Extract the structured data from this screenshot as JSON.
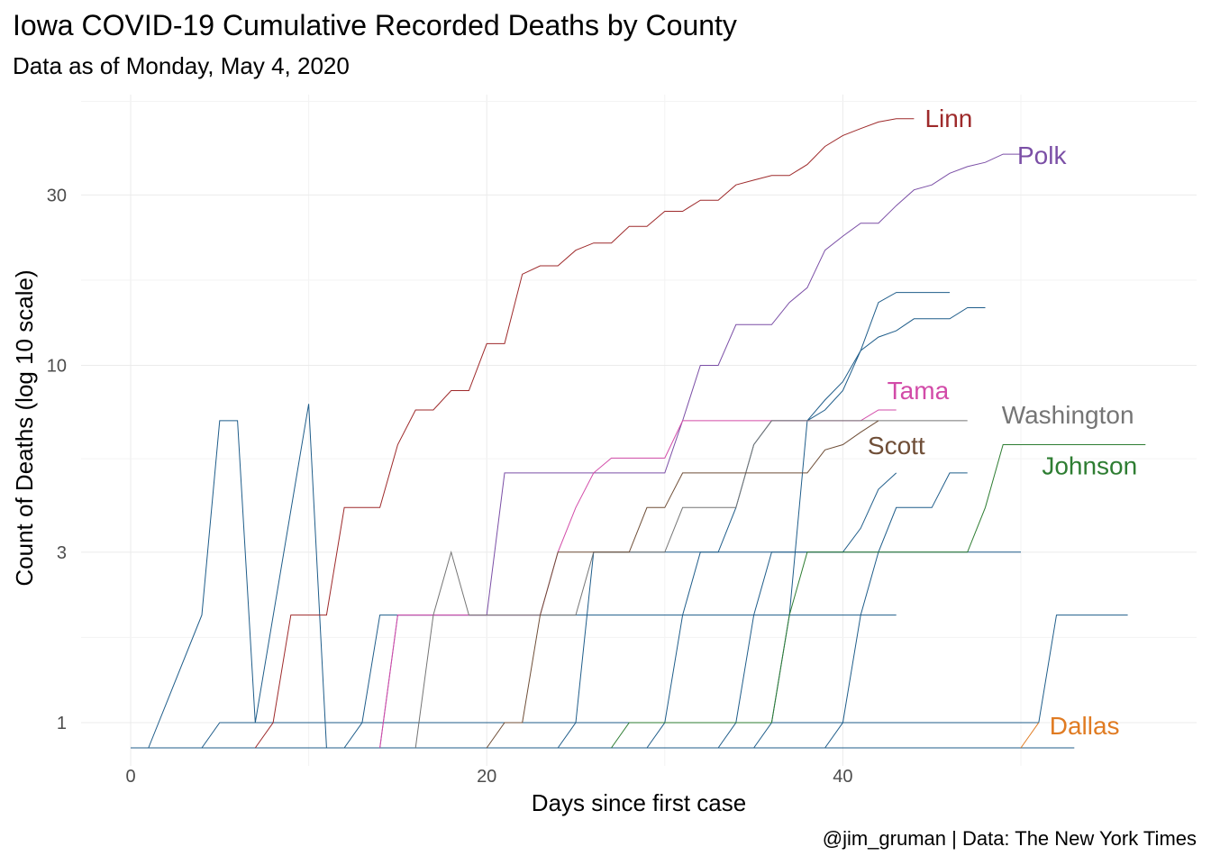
{
  "chart_data": {
    "type": "line",
    "title": "Iowa COVID-19 Cumulative Recorded Deaths by County",
    "subtitle": "Data as of Monday, May  4, 2020",
    "caption": "@jim_gruman | Data: The New York Times",
    "xlabel": "Days since first case",
    "ylabel": "Count of Deaths (log 10 scale)",
    "x_scale": "linear",
    "y_scale": "log10",
    "xlim": [
      -3,
      57
    ],
    "ylim": [
      0.82,
      62
    ],
    "x_ticks": [
      0,
      20,
      40
    ],
    "y_ticks": [
      1,
      3,
      10,
      30
    ],
    "y_tick_labels": [
      "1",
      "3",
      "10",
      "30"
    ],
    "grid": true,
    "legend": "none",
    "series": [
      {
        "name": "Linn",
        "color": "#9e2a2b",
        "labeled": true,
        "points": [
          [
            7,
            0.85
          ],
          [
            8,
            1
          ],
          [
            9,
            2
          ],
          [
            11,
            2
          ],
          [
            12,
            4
          ],
          [
            14,
            4
          ],
          [
            15,
            6
          ],
          [
            16,
            7.5
          ],
          [
            17,
            7.5
          ],
          [
            18,
            8.5
          ],
          [
            19,
            8.5
          ],
          [
            20,
            11.5
          ],
          [
            21,
            11.5
          ],
          [
            22,
            18
          ],
          [
            23,
            19
          ],
          [
            24,
            19
          ],
          [
            25,
            21
          ],
          [
            26,
            22
          ],
          [
            27,
            22
          ],
          [
            28,
            24.5
          ],
          [
            29,
            24.5
          ],
          [
            30,
            27
          ],
          [
            31,
            27
          ],
          [
            32,
            29
          ],
          [
            33,
            29
          ],
          [
            34,
            32
          ],
          [
            35,
            33
          ],
          [
            36,
            34
          ],
          [
            37,
            34
          ],
          [
            38,
            36.5
          ],
          [
            39,
            41
          ],
          [
            40,
            44
          ],
          [
            41,
            46
          ],
          [
            42,
            48
          ],
          [
            43,
            49
          ],
          [
            44,
            49
          ]
        ]
      },
      {
        "name": "Polk",
        "color": "#7b4fa6",
        "labeled": true,
        "points": [
          [
            14,
            0.85
          ],
          [
            15,
            2
          ],
          [
            20,
            2
          ],
          [
            21,
            5
          ],
          [
            30,
            5
          ],
          [
            31,
            7
          ],
          [
            32,
            10
          ],
          [
            33,
            10
          ],
          [
            34,
            13
          ],
          [
            36,
            13
          ],
          [
            37,
            15
          ],
          [
            38,
            16.5
          ],
          [
            39,
            21
          ],
          [
            40,
            23
          ],
          [
            41,
            25
          ],
          [
            42,
            25
          ],
          [
            43,
            28
          ],
          [
            44,
            31
          ],
          [
            45,
            32
          ],
          [
            46,
            34.5
          ],
          [
            47,
            36
          ],
          [
            48,
            37
          ],
          [
            49,
            39
          ],
          [
            50,
            39
          ]
        ]
      },
      {
        "name": "Tama",
        "color": "#d24ba8",
        "labeled": true,
        "points": [
          [
            14,
            0.85
          ],
          [
            15,
            2
          ],
          [
            23,
            2
          ],
          [
            24,
            3
          ],
          [
            25,
            4
          ],
          [
            26,
            5
          ],
          [
            27,
            5.5
          ],
          [
            30,
            5.5
          ],
          [
            31,
            7
          ],
          [
            41,
            7
          ],
          [
            42,
            7.5
          ],
          [
            43,
            7.5
          ]
        ]
      },
      {
        "name": "Washington",
        "color": "#757575",
        "labeled": true,
        "points": [
          [
            16,
            0.85
          ],
          [
            17,
            2
          ],
          [
            18,
            3
          ],
          [
            19,
            2
          ],
          [
            25,
            2
          ],
          [
            26,
            3
          ],
          [
            30,
            3
          ],
          [
            31,
            4
          ],
          [
            34,
            4
          ],
          [
            35,
            6
          ],
          [
            36,
            7
          ],
          [
            47,
            7
          ]
        ]
      },
      {
        "name": "Scott",
        "color": "#6f4e37",
        "labeled": true,
        "points": [
          [
            20,
            0.85
          ],
          [
            21,
            1
          ],
          [
            22,
            1
          ],
          [
            23,
            2
          ],
          [
            24,
            3
          ],
          [
            26,
            3
          ],
          [
            27,
            3
          ],
          [
            28,
            3
          ],
          [
            29,
            4
          ],
          [
            30,
            4
          ],
          [
            31,
            5
          ],
          [
            38,
            5
          ],
          [
            39,
            5.8
          ],
          [
            40,
            6
          ],
          [
            41,
            6.5
          ],
          [
            42,
            7
          ]
        ]
      },
      {
        "name": "Johnson",
        "color": "#2e7d32",
        "labeled": true,
        "points": [
          [
            27,
            0.85
          ],
          [
            28,
            1
          ],
          [
            36,
            1
          ],
          [
            37,
            2
          ],
          [
            38,
            3
          ],
          [
            47,
            3
          ],
          [
            48,
            4
          ],
          [
            49,
            6
          ],
          [
            57,
            6
          ]
        ]
      },
      {
        "name": "Dallas",
        "color": "#e07b22",
        "labeled": true,
        "points": [
          [
            50,
            0.85
          ],
          [
            51,
            1
          ]
        ]
      },
      {
        "name": "",
        "color": "#1f5d8a",
        "labeled": false,
        "points": [
          [
            1,
            0.85
          ],
          [
            4,
            2
          ],
          [
            5,
            7
          ],
          [
            6,
            7
          ],
          [
            7,
            1
          ],
          [
            10,
            7.8
          ],
          [
            11,
            0.85
          ]
        ]
      },
      {
        "name": "",
        "color": "#1f5d8a",
        "labeled": false,
        "points": [
          [
            4,
            0.85
          ],
          [
            5,
            1
          ],
          [
            51,
            1
          ],
          [
            52,
            2
          ],
          [
            56,
            2
          ]
        ]
      },
      {
        "name": "",
        "color": "#1f5d8a",
        "labeled": false,
        "points": [
          [
            12,
            0.85
          ],
          [
            13,
            1
          ],
          [
            14,
            2
          ],
          [
            43,
            2
          ]
        ]
      },
      {
        "name": "",
        "color": "#1f5d8a",
        "labeled": false,
        "points": [
          [
            24,
            0.85
          ],
          [
            25,
            1
          ],
          [
            26,
            3
          ],
          [
            50,
            3
          ]
        ]
      },
      {
        "name": "",
        "color": "#1f5d8a",
        "labeled": false,
        "points": [
          [
            29,
            0.85
          ],
          [
            30,
            1
          ],
          [
            31,
            2
          ],
          [
            32,
            3
          ],
          [
            33,
            3
          ],
          [
            34,
            4
          ],
          [
            35,
            6
          ],
          [
            36,
            7
          ],
          [
            37,
            7
          ],
          [
            38,
            7
          ],
          [
            39,
            8
          ],
          [
            40,
            9
          ],
          [
            41,
            11
          ],
          [
            42,
            12
          ],
          [
            43,
            12.5
          ],
          [
            44,
            13.5
          ],
          [
            45,
            13.5
          ],
          [
            46,
            13.5
          ],
          [
            47,
            14.5
          ],
          [
            48,
            14.5
          ]
        ]
      },
      {
        "name": "",
        "color": "#1f5d8a",
        "labeled": false,
        "points": [
          [
            35,
            0.85
          ],
          [
            36,
            1
          ],
          [
            37,
            2
          ],
          [
            38,
            7
          ],
          [
            39,
            7.5
          ],
          [
            40,
            8.5
          ],
          [
            41,
            11
          ],
          [
            42,
            15
          ],
          [
            43,
            16
          ],
          [
            44,
            16
          ],
          [
            45,
            16
          ],
          [
            46,
            16
          ]
        ]
      },
      {
        "name": "",
        "color": "#1f5d8a",
        "labeled": false,
        "points": [
          [
            39,
            0.85
          ],
          [
            40,
            1
          ],
          [
            41,
            2
          ],
          [
            42,
            3
          ],
          [
            43,
            4
          ],
          [
            44,
            4
          ],
          [
            45,
            4
          ],
          [
            46,
            5
          ],
          [
            47,
            5
          ]
        ]
      },
      {
        "name": "",
        "color": "#1f5d8a",
        "labeled": false,
        "points": [
          [
            33,
            0.85
          ],
          [
            34,
            1
          ],
          [
            35,
            2
          ],
          [
            36,
            3
          ],
          [
            37,
            3
          ],
          [
            38,
            3
          ],
          [
            39,
            3
          ],
          [
            40,
            3
          ],
          [
            41,
            3.5
          ],
          [
            42,
            4.5
          ],
          [
            43,
            5
          ]
        ]
      },
      {
        "name": "",
        "color": "#1f5d8a",
        "labeled": false,
        "points": [
          [
            0,
            0.85
          ],
          [
            53,
            0.85
          ]
        ]
      }
    ]
  }
}
